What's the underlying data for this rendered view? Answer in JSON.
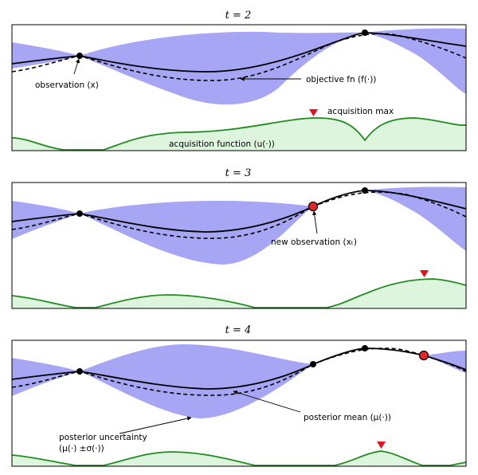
{
  "panels": [
    {
      "title": "t = 2",
      "labels": {
        "observation": "observation (x)",
        "objective": "objective fn (f(·))",
        "acq_max": "acquisition max",
        "acq_fn": "acquisition function (u(·))"
      }
    },
    {
      "title": "t = 3",
      "labels": {
        "new_observation": "new observation (xₜ)"
      }
    },
    {
      "title": "t = 4",
      "labels": {
        "posterior_mean": "posterior mean (μ(·))",
        "uncertainty_line1": "posterior uncertainty",
        "uncertainty_line2": "(μ(·) ±σ(·))"
      }
    }
  ],
  "colors": {
    "uncertainty_band": "#a6a6f5",
    "acquisition": "#228b22",
    "acquisition_fill": "#ddf5dd",
    "new_observation": "#e8252a",
    "acquisition_max_marker": "#e8111a"
  }
}
